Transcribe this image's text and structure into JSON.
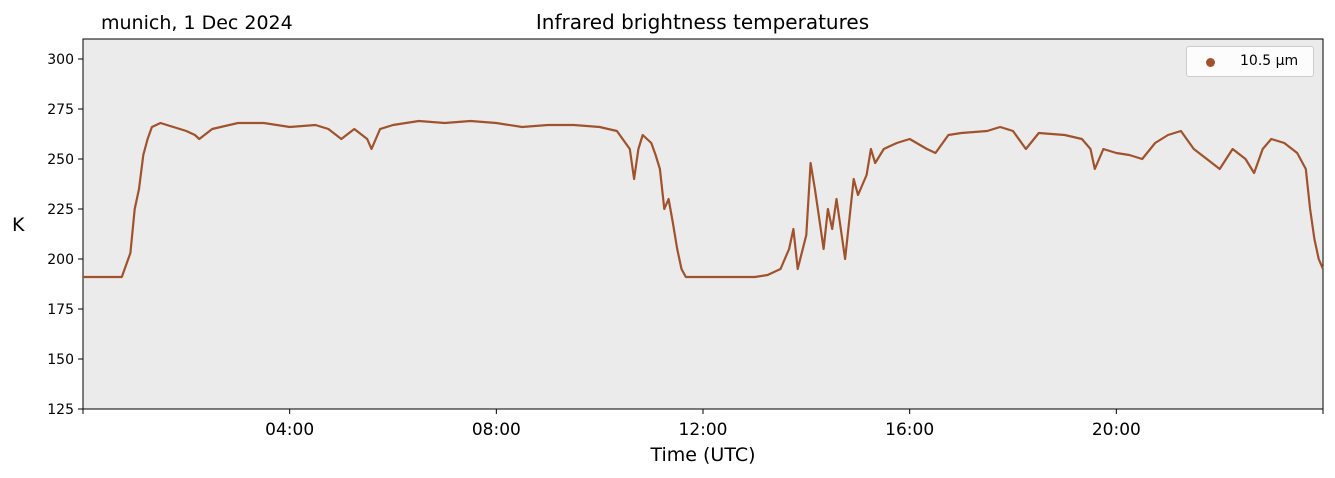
{
  "location_label": "munich, 1 Dec 2024",
  "colors": {
    "plot_background": "#ebebeb",
    "series": "#a0522d"
  },
  "chart_data": {
    "type": "line",
    "title": "Infrared brightness temperatures",
    "xlabel": "Time (UTC)",
    "ylabel": "K",
    "xlim": [
      "00:00",
      "24:00"
    ],
    "ylim": [
      125,
      310
    ],
    "xticks": [
      "04:00",
      "08:00",
      "12:00",
      "16:00",
      "20:00"
    ],
    "yticks": [
      125,
      150,
      175,
      200,
      225,
      250,
      275,
      300
    ],
    "grid": false,
    "legend_position": "top-right",
    "series": [
      {
        "name": "10.5 µm",
        "points": [
          [
            "00:00",
            191
          ],
          [
            "00:15",
            191
          ],
          [
            "00:30",
            191
          ],
          [
            "00:45",
            191
          ],
          [
            "00:50",
            197
          ],
          [
            "00:55",
            203
          ],
          [
            "01:00",
            225
          ],
          [
            "01:05",
            235
          ],
          [
            "01:10",
            252
          ],
          [
            "01:15",
            260
          ],
          [
            "01:20",
            266
          ],
          [
            "01:30",
            268
          ],
          [
            "01:45",
            266
          ],
          [
            "02:00",
            264
          ],
          [
            "02:10",
            262
          ],
          [
            "02:15",
            260
          ],
          [
            "02:30",
            265
          ],
          [
            "03:00",
            268
          ],
          [
            "03:30",
            268
          ],
          [
            "04:00",
            266
          ],
          [
            "04:30",
            267
          ],
          [
            "04:45",
            265
          ],
          [
            "05:00",
            260
          ],
          [
            "05:15",
            265
          ],
          [
            "05:30",
            260
          ],
          [
            "05:35",
            255
          ],
          [
            "05:45",
            265
          ],
          [
            "06:00",
            267
          ],
          [
            "06:30",
            269
          ],
          [
            "07:00",
            268
          ],
          [
            "07:30",
            269
          ],
          [
            "08:00",
            268
          ],
          [
            "08:30",
            266
          ],
          [
            "09:00",
            267
          ],
          [
            "09:30",
            267
          ],
          [
            "10:00",
            266
          ],
          [
            "10:20",
            264
          ],
          [
            "10:35",
            255
          ],
          [
            "10:40",
            240
          ],
          [
            "10:45",
            255
          ],
          [
            "10:50",
            262
          ],
          [
            "11:00",
            258
          ],
          [
            "11:05",
            252
          ],
          [
            "11:10",
            245
          ],
          [
            "11:15",
            225
          ],
          [
            "11:20",
            230
          ],
          [
            "11:25",
            218
          ],
          [
            "11:30",
            205
          ],
          [
            "11:35",
            195
          ],
          [
            "11:40",
            191
          ],
          [
            "12:00",
            191
          ],
          [
            "12:30",
            191
          ],
          [
            "13:00",
            191
          ],
          [
            "13:15",
            192
          ],
          [
            "13:30",
            195
          ],
          [
            "13:40",
            205
          ],
          [
            "13:45",
            215
          ],
          [
            "13:50",
            195
          ],
          [
            "14:00",
            212
          ],
          [
            "14:05",
            248
          ],
          [
            "14:10",
            235
          ],
          [
            "14:15",
            220
          ],
          [
            "14:20",
            205
          ],
          [
            "14:25",
            225
          ],
          [
            "14:30",
            215
          ],
          [
            "14:35",
            230
          ],
          [
            "14:40",
            215
          ],
          [
            "14:45",
            200
          ],
          [
            "14:50",
            220
          ],
          [
            "14:55",
            240
          ],
          [
            "15:00",
            232
          ],
          [
            "15:10",
            242
          ],
          [
            "15:15",
            255
          ],
          [
            "15:20",
            248
          ],
          [
            "15:30",
            255
          ],
          [
            "15:45",
            258
          ],
          [
            "16:00",
            260
          ],
          [
            "16:20",
            255
          ],
          [
            "16:30",
            253
          ],
          [
            "16:45",
            262
          ],
          [
            "17:00",
            263
          ],
          [
            "17:30",
            264
          ],
          [
            "17:45",
            266
          ],
          [
            "18:00",
            264
          ],
          [
            "18:15",
            255
          ],
          [
            "18:30",
            263
          ],
          [
            "19:00",
            262
          ],
          [
            "19:20",
            260
          ],
          [
            "19:30",
            255
          ],
          [
            "19:35",
            245
          ],
          [
            "19:45",
            255
          ],
          [
            "20:00",
            253
          ],
          [
            "20:15",
            252
          ],
          [
            "20:30",
            250
          ],
          [
            "20:45",
            258
          ],
          [
            "21:00",
            262
          ],
          [
            "21:15",
            264
          ],
          [
            "21:30",
            255
          ],
          [
            "21:45",
            250
          ],
          [
            "22:00",
            245
          ],
          [
            "22:15",
            255
          ],
          [
            "22:30",
            250
          ],
          [
            "22:40",
            243
          ],
          [
            "22:50",
            255
          ],
          [
            "23:00",
            260
          ],
          [
            "23:15",
            258
          ],
          [
            "23:30",
            253
          ],
          [
            "23:40",
            245
          ],
          [
            "23:45",
            225
          ],
          [
            "23:50",
            210
          ],
          [
            "23:55",
            200
          ],
          [
            "24:00",
            195
          ]
        ]
      }
    ]
  }
}
